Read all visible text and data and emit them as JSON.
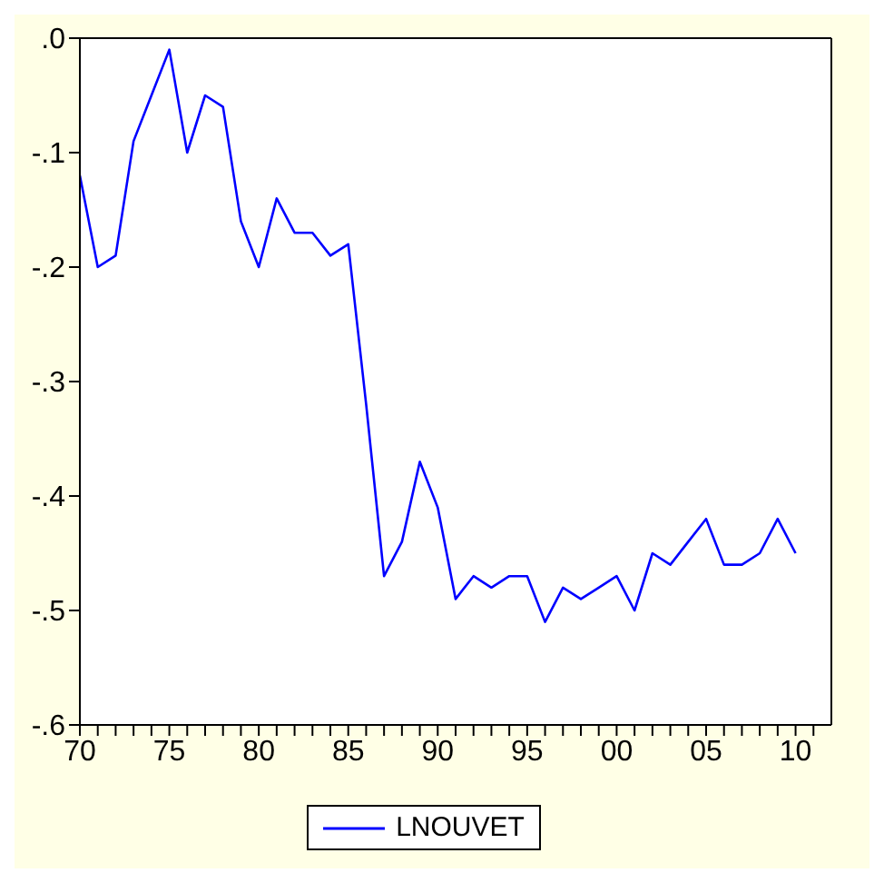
{
  "chart_data": {
    "type": "line",
    "x": [
      1970,
      1971,
      1972,
      1973,
      1974,
      1975,
      1976,
      1977,
      1978,
      1979,
      1980,
      1981,
      1982,
      1983,
      1984,
      1985,
      1986,
      1987,
      1988,
      1989,
      1990,
      1991,
      1992,
      1993,
      1994,
      1995,
      1996,
      1997,
      1998,
      1999,
      2000,
      2001,
      2002,
      2003,
      2004,
      2005,
      2006,
      2007,
      2008,
      2009,
      2010
    ],
    "series": [
      {
        "name": "LNOUVET",
        "color": "#0000ff",
        "values": [
          -0.12,
          -0.2,
          -0.19,
          -0.09,
          -0.05,
          -0.01,
          -0.1,
          -0.05,
          -0.06,
          -0.16,
          -0.2,
          -0.14,
          -0.17,
          -0.17,
          -0.19,
          -0.18,
          -0.32,
          -0.47,
          -0.44,
          -0.37,
          -0.41,
          -0.49,
          -0.47,
          -0.48,
          -0.47,
          -0.47,
          -0.51,
          -0.48,
          -0.49,
          -0.48,
          -0.47,
          -0.5,
          -0.45,
          -0.46,
          -0.44,
          -0.42,
          -0.46,
          -0.46,
          -0.45,
          -0.42,
          -0.45
        ]
      }
    ],
    "xlim": [
      1970,
      2012
    ],
    "xticks": [
      {
        "value": 1970,
        "label": "70"
      },
      {
        "value": 1971,
        "label": null
      },
      {
        "value": 1972,
        "label": null
      },
      {
        "value": 1973,
        "label": null
      },
      {
        "value": 1974,
        "label": null
      },
      {
        "value": 1975,
        "label": "75"
      },
      {
        "value": 1976,
        "label": null
      },
      {
        "value": 1977,
        "label": null
      },
      {
        "value": 1978,
        "label": null
      },
      {
        "value": 1979,
        "label": null
      },
      {
        "value": 1980,
        "label": "80"
      },
      {
        "value": 1981,
        "label": null
      },
      {
        "value": 1982,
        "label": null
      },
      {
        "value": 1983,
        "label": null
      },
      {
        "value": 1984,
        "label": null
      },
      {
        "value": 1985,
        "label": "85"
      },
      {
        "value": 1986,
        "label": null
      },
      {
        "value": 1987,
        "label": null
      },
      {
        "value": 1988,
        "label": null
      },
      {
        "value": 1989,
        "label": null
      },
      {
        "value": 1990,
        "label": "90"
      },
      {
        "value": 1991,
        "label": null
      },
      {
        "value": 1992,
        "label": null
      },
      {
        "value": 1993,
        "label": null
      },
      {
        "value": 1994,
        "label": null
      },
      {
        "value": 1995,
        "label": "95"
      },
      {
        "value": 1996,
        "label": null
      },
      {
        "value": 1997,
        "label": null
      },
      {
        "value": 1998,
        "label": null
      },
      {
        "value": 1999,
        "label": null
      },
      {
        "value": 2000,
        "label": "00"
      },
      {
        "value": 2001,
        "label": null
      },
      {
        "value": 2002,
        "label": null
      },
      {
        "value": 2003,
        "label": null
      },
      {
        "value": 2004,
        "label": null
      },
      {
        "value": 2005,
        "label": "05"
      },
      {
        "value": 2006,
        "label": null
      },
      {
        "value": 2007,
        "label": null
      },
      {
        "value": 2008,
        "label": null
      },
      {
        "value": 2009,
        "label": null
      },
      {
        "value": 2010,
        "label": "10"
      },
      {
        "value": 2011,
        "label": null
      }
    ],
    "ylim": [
      -0.6,
      0
    ],
    "yticks": [
      {
        "value": -0.6,
        "label": "-.6"
      },
      {
        "value": -0.5,
        "label": "-.5"
      },
      {
        "value": -0.4,
        "label": "-.4"
      },
      {
        "value": -0.3,
        "label": "-.3"
      },
      {
        "value": -0.2,
        "label": "-.2"
      },
      {
        "value": -0.1,
        "label": "-.1"
      },
      {
        "value": 0,
        "label": ".0"
      }
    ],
    "grid": false,
    "legend": "bottom",
    "marker": "none",
    "line_style": "solid"
  }
}
